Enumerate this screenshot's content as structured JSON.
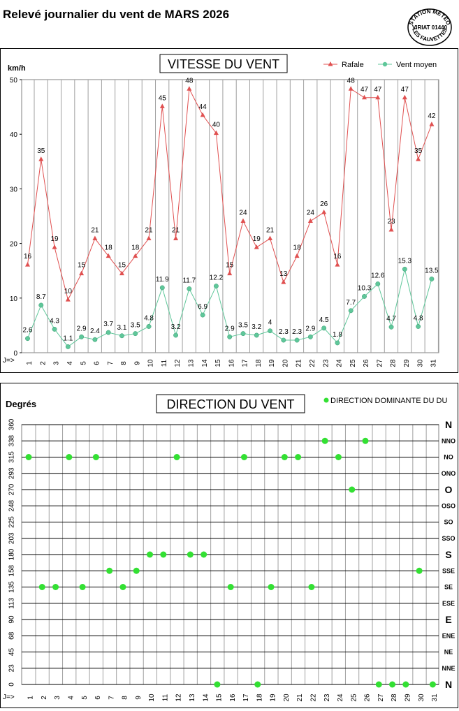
{
  "page": {
    "title": "Relevé journalier du vent de MARS 2026"
  },
  "logo": {
    "line1": "STATION METEO",
    "line2": "VIRIAT 01440",
    "line3": "LES FAUVETTES"
  },
  "chart_data": [
    {
      "type": "line",
      "title": "VITESSE DU VENT",
      "ylabel": "km/h",
      "xlabel": "J=>",
      "ylim": [
        0,
        50
      ],
      "yticks": [
        0,
        10,
        20,
        30,
        40,
        50
      ],
      "grid": true,
      "legend_position": "top-right",
      "categories": [
        1,
        2,
        3,
        4,
        5,
        6,
        7,
        8,
        9,
        10,
        11,
        12,
        13,
        14,
        15,
        16,
        17,
        18,
        19,
        20,
        21,
        22,
        23,
        24,
        25,
        26,
        27,
        28,
        29,
        30,
        31
      ],
      "series": [
        {
          "name": "Rafale",
          "color": "#e05050",
          "marker": "triangle",
          "values": [
            16.1,
            35.4,
            19.3,
            9.7,
            14.5,
            20.9,
            17.7,
            14.5,
            17.7,
            20.9,
            45.1,
            20.9,
            48.3,
            43.5,
            40.2,
            14.5,
            24.1,
            19.3,
            20.9,
            12.9,
            17.7,
            24.1,
            25.7,
            16.1,
            48.3,
            46.7,
            46.7,
            22.5,
            46.7,
            35.4,
            41.8
          ],
          "labels": [
            "16",
            "35",
            "19",
            "10",
            "15",
            "21",
            "18",
            "15",
            "18",
            "21",
            "45",
            "21",
            "48",
            "44",
            "40",
            "15",
            "24",
            "19",
            "21",
            "13",
            "18",
            "24",
            "26",
            "16",
            "48",
            "47",
            "47",
            "23",
            "47",
            "35",
            "42"
          ]
        },
        {
          "name": "Vent moyen",
          "color": "#5fc79a",
          "marker": "circle",
          "values": [
            2.6,
            8.7,
            4.3,
            1.1,
            2.9,
            2.4,
            3.7,
            3.1,
            3.5,
            4.8,
            11.9,
            3.2,
            11.7,
            6.9,
            12.2,
            2.9,
            3.5,
            3.2,
            4,
            2.3,
            2.3,
            2.9,
            4.5,
            1.8,
            7.7,
            10.3,
            12.6,
            4.7,
            15.3,
            4.8,
            13.5
          ],
          "labels": [
            "2.6",
            "8.7",
            "4.3",
            "1.1",
            "2.9",
            "2.4",
            "3.7",
            "3.1",
            "3.5",
            "4.8",
            "11.9",
            "3.2",
            "11.7",
            "6.9",
            "12.2",
            "2.9",
            "3.5",
            "3.2",
            "4",
            "2.3",
            "2.3",
            "2.9",
            "4.5",
            "1.8",
            "7.7",
            "10.3",
            "12.6",
            "4.7",
            "15.3",
            "4.8",
            "13.5"
          ]
        }
      ]
    },
    {
      "type": "scatter",
      "title": "DIRECTION DU VENT",
      "ylabel": "Degrés",
      "xlabel": "J=>",
      "ylim": [
        0,
        360
      ],
      "grid": true,
      "legend_position": "top-right",
      "categories": [
        1,
        2,
        3,
        4,
        5,
        6,
        7,
        8,
        9,
        10,
        11,
        12,
        13,
        14,
        15,
        16,
        17,
        18,
        19,
        20,
        21,
        22,
        23,
        24,
        25,
        26,
        27,
        28,
        29,
        30,
        31
      ],
      "yticks": [
        "0",
        "23",
        "45",
        "68",
        "90",
        "113",
        "135",
        "158",
        "180",
        "203",
        "225",
        "248",
        "270",
        "293",
        "315",
        "338",
        "360"
      ],
      "ytick_values": [
        0,
        22.5,
        45,
        67.5,
        90,
        112.5,
        135,
        157.5,
        180,
        202.5,
        225,
        247.5,
        270,
        292.5,
        315,
        337.5,
        360
      ],
      "direction_labels": [
        "N",
        "NNE",
        "NE",
        "ENE",
        "E",
        "ESE",
        "SE",
        "SSE",
        "S",
        "SSO",
        "SO",
        "OSO",
        "O",
        "ONO",
        "NO",
        "NNO",
        "N"
      ],
      "series": [
        {
          "name": "DIRECTION DOMINANTE DU VENT",
          "color": "#33e033",
          "values": [
            315,
            135,
            135,
            315,
            135,
            315,
            157.5,
            135,
            157.5,
            180,
            180,
            315,
            180,
            180,
            0,
            135,
            315,
            0,
            135,
            315,
            315,
            135,
            337.5,
            315,
            270,
            337.5,
            0,
            0,
            0,
            157.5,
            0
          ]
        }
      ]
    }
  ]
}
